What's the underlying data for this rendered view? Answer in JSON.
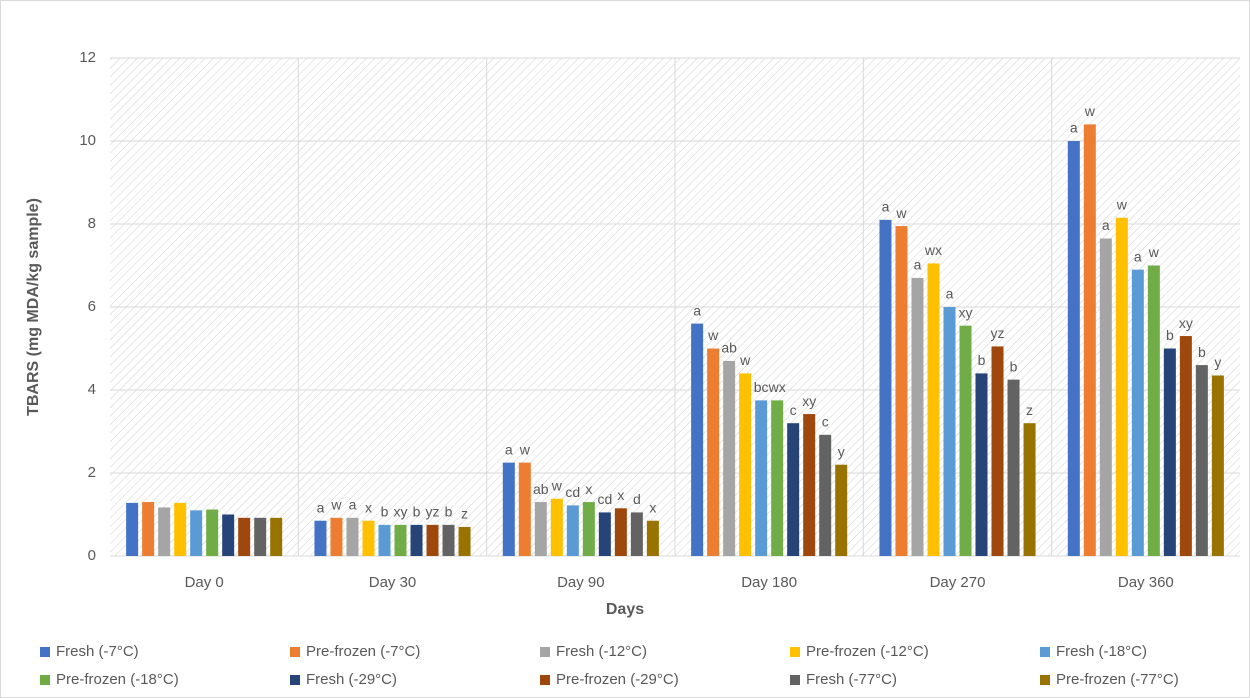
{
  "chart_data": {
    "type": "bar",
    "x_label": "Days",
    "y_label": "TBARS (mg MDA/kg sample)",
    "categories": [
      "Day 0",
      "Day 30",
      "Day 90",
      "Day 180",
      "Day 270",
      "Day 360"
    ],
    "ylim": [
      0,
      12
    ],
    "yticks": [
      0,
      2,
      4,
      6,
      8,
      10,
      12
    ],
    "grid": true,
    "legend": "bottom",
    "series": [
      {
        "name": "Fresh (-7°C)",
        "color": "#4472c4",
        "values": [
          1.28,
          0.85,
          2.25,
          5.6,
          8.1,
          10.0
        ],
        "labels": [
          null,
          "a",
          "a",
          "a",
          "a",
          "a"
        ]
      },
      {
        "name": "Pre-frozen (-7°C)",
        "color": "#ed7d31",
        "values": [
          1.3,
          0.92,
          2.25,
          5.0,
          7.95,
          10.4
        ],
        "labels": [
          null,
          "w",
          "w",
          "w",
          "w",
          "w"
        ]
      },
      {
        "name": "Fresh (-12°C)",
        "color": "#a5a5a5",
        "values": [
          1.17,
          0.92,
          1.3,
          4.7,
          6.7,
          7.65
        ],
        "labels": [
          null,
          "a",
          "ab",
          "ab",
          "a",
          "a"
        ]
      },
      {
        "name": "Pre-frozen (-12°C)",
        "color": "#ffc000",
        "values": [
          1.28,
          0.85,
          1.38,
          4.4,
          7.05,
          8.15
        ],
        "labels": [
          null,
          "x",
          "w",
          "w",
          "wx",
          "w"
        ]
      },
      {
        "name": "Fresh (-18°C)",
        "color": "#5b9bd5",
        "values": [
          1.1,
          0.75,
          1.22,
          3.75,
          6.0,
          6.9
        ],
        "labels": [
          null,
          "b",
          "cd",
          "bc",
          "a",
          "a"
        ]
      },
      {
        "name": "Pre-frozen (-18°C)",
        "color": "#70ad47",
        "values": [
          1.12,
          0.75,
          1.3,
          3.75,
          5.55,
          7.0
        ],
        "labels": [
          null,
          "xy",
          "x",
          "wx",
          "xy",
          "w"
        ]
      },
      {
        "name": "Fresh (-29°C)",
        "color": "#264478",
        "values": [
          1.0,
          0.75,
          1.05,
          3.2,
          4.4,
          5.0
        ],
        "labels": [
          null,
          "b",
          "cd",
          "c",
          "b",
          "b"
        ]
      },
      {
        "name": "Pre-frozen (-29°C)",
        "color": "#9e480e",
        "values": [
          0.92,
          0.75,
          1.15,
          3.42,
          5.05,
          5.3
        ],
        "labels": [
          null,
          "yz",
          "x",
          "xy",
          "yz",
          "xy"
        ]
      },
      {
        "name": "Fresh (-77°C)",
        "color": "#636363",
        "values": [
          0.92,
          0.75,
          1.05,
          2.92,
          4.25,
          4.6
        ],
        "labels": [
          null,
          "b",
          "d",
          "c",
          "b",
          "b"
        ]
      },
      {
        "name": "Pre-frozen (-77°C)",
        "color": "#997300",
        "values": [
          0.92,
          0.7,
          0.85,
          2.2,
          3.2,
          4.35
        ],
        "labels": [
          null,
          "z",
          "x",
          "y",
          "z",
          "y"
        ]
      }
    ]
  }
}
